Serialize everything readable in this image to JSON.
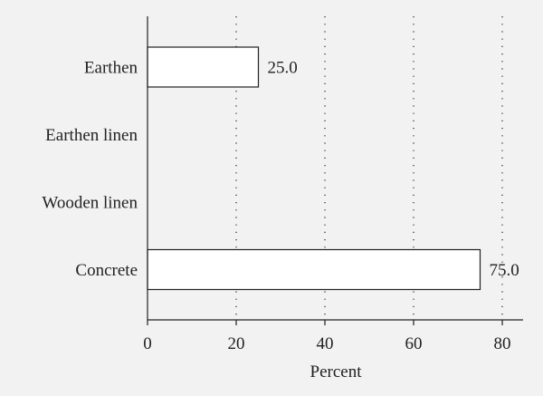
{
  "chart_data": {
    "type": "bar",
    "orientation": "horizontal",
    "categories": [
      "Earthen",
      "Earthen linen",
      "Wooden linen",
      "Concrete"
    ],
    "values": [
      25.0,
      null,
      null,
      75.0
    ],
    "data_labels": [
      "25.0",
      "",
      "",
      "75.0"
    ],
    "title": "",
    "xlabel": "Percent",
    "ylabel": "",
    "xlim": [
      0,
      85
    ],
    "xticks": [
      0,
      20,
      40,
      60,
      80
    ],
    "xtick_labels": [
      "0",
      "20",
      "40",
      "60",
      "80"
    ],
    "grid": "vertical dotted lines at x ticks",
    "bar_fill": "#ffffff",
    "bar_stroke": "#222222",
    "background": "#f2f2f2"
  }
}
